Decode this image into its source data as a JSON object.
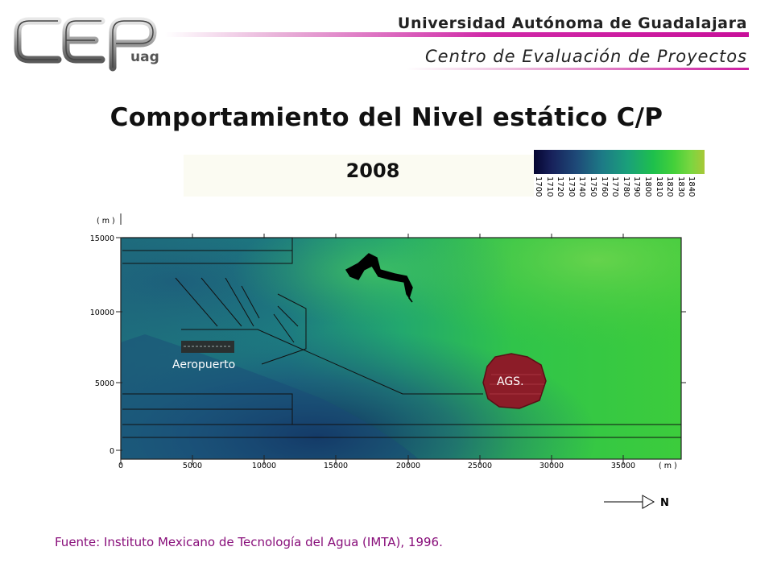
{
  "header": {
    "logo_text": "CEP uag",
    "university": "Universidad Autónoma de Guadalajara",
    "center": "Centro de Evaluación de Proyectos"
  },
  "title": "Comportamiento del Nivel estático C/P",
  "year": "2008",
  "legend": {
    "ticks": [
      "1700",
      "1710",
      "1720",
      "1730",
      "1740",
      "1750",
      "1760",
      "1770",
      "1780",
      "1790",
      "1800",
      "1810",
      "1820",
      "1830",
      "1840"
    ],
    "colors": [
      "#050530",
      "#1e4a78",
      "#1d7a86",
      "#1aa07a",
      "#1ec04c",
      "#7ad640",
      "#a8c838"
    ]
  },
  "map": {
    "y_unit": "( m )",
    "x_unit": "( m )",
    "y_ticks": [
      "15000",
      "10000",
      "5000",
      "0"
    ],
    "x_ticks": [
      "0",
      "5000",
      "10000",
      "15000",
      "20000",
      "25000",
      "30000",
      "35000"
    ],
    "labels": {
      "airport": "Aeropuerto",
      "city": "AGS."
    },
    "north": "N"
  },
  "source": "Fuente: Instituto Mexicano de Tecnología del Agua (IMTA), 1996."
}
